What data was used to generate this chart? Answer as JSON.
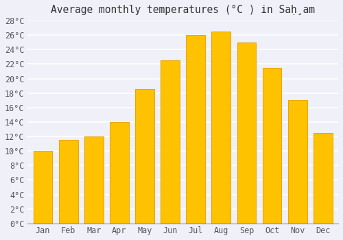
{
  "title": "Average monthly temperatures (°C ) in Saḩ̣am",
  "months": [
    "Jan",
    "Feb",
    "Mar",
    "Apr",
    "May",
    "Jun",
    "Jul",
    "Aug",
    "Sep",
    "Oct",
    "Nov",
    "Dec"
  ],
  "values": [
    10.0,
    11.5,
    12.0,
    14.0,
    18.5,
    22.5,
    26.0,
    26.5,
    25.0,
    21.5,
    17.0,
    12.5
  ],
  "ylim": [
    0,
    28
  ],
  "yticks": [
    0,
    2,
    4,
    6,
    8,
    10,
    12,
    14,
    16,
    18,
    20,
    22,
    24,
    26,
    28
  ],
  "bar_color": "#FFC200",
  "bar_edge_color": "#E8A800",
  "background_color": "#f0f0f8",
  "plot_bg_color": "#f0f0f8",
  "grid_color": "#ffffff",
  "title_fontsize": 10.5,
  "tick_fontsize": 8.5,
  "title_color": "#333333",
  "tick_color": "#555555"
}
